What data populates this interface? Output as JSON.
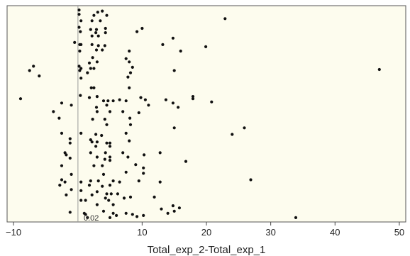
{
  "chart_data": {
    "type": "scatter",
    "title": "",
    "xlabel": "Total_exp_2-Total_exp_1",
    "ylabel": "",
    "xlim": [
      -11,
      51
    ],
    "ylim": [
      0,
      100
    ],
    "grid": false,
    "background": "#fdfcee",
    "point_color": "#111111",
    "reference_line": {
      "x": 0.02,
      "label": "0.02",
      "color": "#999999"
    },
    "x_ticks": [
      -10,
      10,
      20,
      30,
      40,
      50
    ],
    "x_tick_labels": [
      "−10",
      "10",
      "20",
      "30",
      "40",
      "50"
    ],
    "points": [
      {
        "x": 0.2,
        "y": 98
      },
      {
        "x": 3.1,
        "y": 97
      },
      {
        "x": 3.8,
        "y": 97.5
      },
      {
        "x": 0.2,
        "y": 96
      },
      {
        "x": 2.5,
        "y": 95.5
      },
      {
        "x": 4.5,
        "y": 95.5
      },
      {
        "x": 3.5,
        "y": 93
      },
      {
        "x": 0.5,
        "y": 93
      },
      {
        "x": 2.2,
        "y": 93
      },
      {
        "x": 22.9,
        "y": 94
      },
      {
        "x": 0.2,
        "y": 90
      },
      {
        "x": 2.0,
        "y": 89
      },
      {
        "x": 2.9,
        "y": 89
      },
      {
        "x": 4.3,
        "y": 89.5
      },
      {
        "x": 10.0,
        "y": 89.5
      },
      {
        "x": 0.4,
        "y": 88
      },
      {
        "x": 2.8,
        "y": 87.5
      },
      {
        "x": 4.3,
        "y": 87.5
      },
      {
        "x": 9.2,
        "y": 88
      },
      {
        "x": 2.2,
        "y": 86
      },
      {
        "x": 3.2,
        "y": 86
      },
      {
        "x": 14.8,
        "y": 85
      },
      {
        "x": -0.5,
        "y": 83
      },
      {
        "x": 0.3,
        "y": 82
      },
      {
        "x": 0.5,
        "y": 82
      },
      {
        "x": 2.2,
        "y": 82
      },
      {
        "x": 3.2,
        "y": 81.5
      },
      {
        "x": 4.2,
        "y": 81.5
      },
      {
        "x": 13.2,
        "y": 82
      },
      {
        "x": 0.3,
        "y": 79
      },
      {
        "x": 2.9,
        "y": 79.5
      },
      {
        "x": 3.8,
        "y": 79.5
      },
      {
        "x": 8.0,
        "y": 79
      },
      {
        "x": 16.0,
        "y": 79
      },
      {
        "x": 2.3,
        "y": 76
      },
      {
        "x": 19.9,
        "y": 81
      },
      {
        "x": 1.8,
        "y": 73.5
      },
      {
        "x": 3.0,
        "y": 74
      },
      {
        "x": 7.5,
        "y": 75.5
      },
      {
        "x": 8.0,
        "y": 74
      },
      {
        "x": -6.9,
        "y": 72
      },
      {
        "x": 0.2,
        "y": 72
      },
      {
        "x": 0.5,
        "y": 71
      },
      {
        "x": 2.0,
        "y": 71
      },
      {
        "x": 2.5,
        "y": 71
      },
      {
        "x": 8.5,
        "y": 71.5
      },
      {
        "x": -7.5,
        "y": 70
      },
      {
        "x": 0.3,
        "y": 70
      },
      {
        "x": 1.5,
        "y": 69
      },
      {
        "x": 8.2,
        "y": 69
      },
      {
        "x": 15.0,
        "y": 70
      },
      {
        "x": -6.0,
        "y": 67.5
      },
      {
        "x": 0.5,
        "y": 66.5
      },
      {
        "x": 7.8,
        "y": 67
      },
      {
        "x": 46.9,
        "y": 70.5
      },
      {
        "x": 2.1,
        "y": 62
      },
      {
        "x": 2.5,
        "y": 62
      },
      {
        "x": 8.0,
        "y": 62
      },
      {
        "x": -8.9,
        "y": 57
      },
      {
        "x": 0.4,
        "y": 58.5
      },
      {
        "x": 1.8,
        "y": 57.5
      },
      {
        "x": 3.0,
        "y": 58
      },
      {
        "x": 4.0,
        "y": 56
      },
      {
        "x": 4.7,
        "y": 56
      },
      {
        "x": 5.5,
        "y": 56
      },
      {
        "x": 6.5,
        "y": 56.5
      },
      {
        "x": 7.5,
        "y": 56
      },
      {
        "x": 9.8,
        "y": 57.5
      },
      {
        "x": 10.5,
        "y": 56.5
      },
      {
        "x": 13.7,
        "y": 56.5
      },
      {
        "x": 17.9,
        "y": 58
      },
      {
        "x": 17.9,
        "y": 57
      },
      {
        "x": 20.8,
        "y": 55.5
      },
      {
        "x": 14.8,
        "y": 55
      },
      {
        "x": -1.0,
        "y": 54
      },
      {
        "x": 2.9,
        "y": 53
      },
      {
        "x": 4.5,
        "y": 54
      },
      {
        "x": 11.0,
        "y": 54
      },
      {
        "x": 15.6,
        "y": 53
      },
      {
        "x": -3.8,
        "y": 51
      },
      {
        "x": 3.0,
        "y": 51
      },
      {
        "x": 5.0,
        "y": 51
      },
      {
        "x": 7.0,
        "y": 51
      },
      {
        "x": 9.5,
        "y": 50.5
      },
      {
        "x": -2.5,
        "y": 55
      },
      {
        "x": -2.9,
        "y": 48
      },
      {
        "x": 2.3,
        "y": 47.5
      },
      {
        "x": 4.2,
        "y": 47.5
      },
      {
        "x": 8.1,
        "y": 48
      },
      {
        "x": 4.5,
        "y": 45
      },
      {
        "x": 8.2,
        "y": 45
      },
      {
        "x": 15.0,
        "y": 43.5
      },
      {
        "x": 25.9,
        "y": 43.5
      },
      {
        "x": -2.5,
        "y": 41
      },
      {
        "x": 0.5,
        "y": 41
      },
      {
        "x": 2.8,
        "y": 40.5
      },
      {
        "x": 3.7,
        "y": 40
      },
      {
        "x": 7.5,
        "y": 41
      },
      {
        "x": 24.0,
        "y": 40.5
      },
      {
        "x": -1.2,
        "y": 38.5
      },
      {
        "x": 2.0,
        "y": 38
      },
      {
        "x": 2.2,
        "y": 37
      },
      {
        "x": 3.0,
        "y": 37
      },
      {
        "x": 4.5,
        "y": 36.5
      },
      {
        "x": 5.0,
        "y": 36.5
      },
      {
        "x": 8.0,
        "y": 37.5
      },
      {
        "x": -1.2,
        "y": 36.5
      },
      {
        "x": 2.8,
        "y": 35
      },
      {
        "x": 5.0,
        "y": 35
      },
      {
        "x": -2.0,
        "y": 32
      },
      {
        "x": 2.0,
        "y": 32
      },
      {
        "x": 4.3,
        "y": 32
      },
      {
        "x": 7.0,
        "y": 32
      },
      {
        "x": 12.8,
        "y": 32
      },
      {
        "x": -1.8,
        "y": 31
      },
      {
        "x": 3.0,
        "y": 30
      },
      {
        "x": 5.0,
        "y": 30
      },
      {
        "x": 7.8,
        "y": 30
      },
      {
        "x": 10.3,
        "y": 31
      },
      {
        "x": -1.2,
        "y": 29.5
      },
      {
        "x": 4.2,
        "y": 29
      },
      {
        "x": 5.0,
        "y": 28.5
      },
      {
        "x": 16.8,
        "y": 28
      },
      {
        "x": -2.5,
        "y": 26
      },
      {
        "x": 2.5,
        "y": 26
      },
      {
        "x": 3.8,
        "y": 26
      },
      {
        "x": 9.0,
        "y": 26.5
      },
      {
        "x": 10.2,
        "y": 25
      },
      {
        "x": -1.0,
        "y": 22
      },
      {
        "x": 4.0,
        "y": 22
      },
      {
        "x": 7.5,
        "y": 23
      },
      {
        "x": 10.2,
        "y": 22.5
      },
      {
        "x": -2.5,
        "y": 19.5
      },
      {
        "x": -2.0,
        "y": 18.5
      },
      {
        "x": 0.5,
        "y": 18.5
      },
      {
        "x": 2.0,
        "y": 19
      },
      {
        "x": 3.2,
        "y": 19
      },
      {
        "x": 5.5,
        "y": 19
      },
      {
        "x": 6.5,
        "y": 18.5
      },
      {
        "x": 9.5,
        "y": 19
      },
      {
        "x": 12.8,
        "y": 18.5
      },
      {
        "x": 26.9,
        "y": 19.5
      },
      {
        "x": -2.8,
        "y": 17
      },
      {
        "x": 1.8,
        "y": 17
      },
      {
        "x": 3.8,
        "y": 16.5
      },
      {
        "x": 5.0,
        "y": 17
      },
      {
        "x": -1.0,
        "y": 15
      },
      {
        "x": 0.5,
        "y": 14.5
      },
      {
        "x": 3.0,
        "y": 14
      },
      {
        "x": 4.5,
        "y": 13
      },
      {
        "x": 5.2,
        "y": 13
      },
      {
        "x": 6.2,
        "y": 13
      },
      {
        "x": -1.8,
        "y": 12.5
      },
      {
        "x": 2.2,
        "y": 12.5
      },
      {
        "x": 4.3,
        "y": 11
      },
      {
        "x": 7.2,
        "y": 11
      },
      {
        "x": 8.2,
        "y": 11.5
      },
      {
        "x": 0.5,
        "y": 10
      },
      {
        "x": 1.2,
        "y": 10
      },
      {
        "x": 4.8,
        "y": 10
      },
      {
        "x": 11.9,
        "y": 11.5
      },
      {
        "x": 3.0,
        "y": 8
      },
      {
        "x": 5.5,
        "y": 8
      },
      {
        "x": 14.8,
        "y": 7.5
      },
      {
        "x": -1.2,
        "y": 4.5
      },
      {
        "x": 1.0,
        "y": 4
      },
      {
        "x": 1.2,
        "y": 3.5
      },
      {
        "x": 4.0,
        "y": 5
      },
      {
        "x": 5.5,
        "y": 4
      },
      {
        "x": 6.0,
        "y": 3
      },
      {
        "x": 7.5,
        "y": 4
      },
      {
        "x": 8.5,
        "y": 3.5
      },
      {
        "x": 9.2,
        "y": 2.5
      },
      {
        "x": 10.2,
        "y": 3
      },
      {
        "x": 13.0,
        "y": 6
      },
      {
        "x": 14.0,
        "y": 4
      },
      {
        "x": 15.0,
        "y": 5
      },
      {
        "x": 15.8,
        "y": 6.5
      },
      {
        "x": 1.5,
        "y": 2
      },
      {
        "x": 5.0,
        "y": 2
      },
      {
        "x": 33.9,
        "y": 2
      }
    ]
  }
}
